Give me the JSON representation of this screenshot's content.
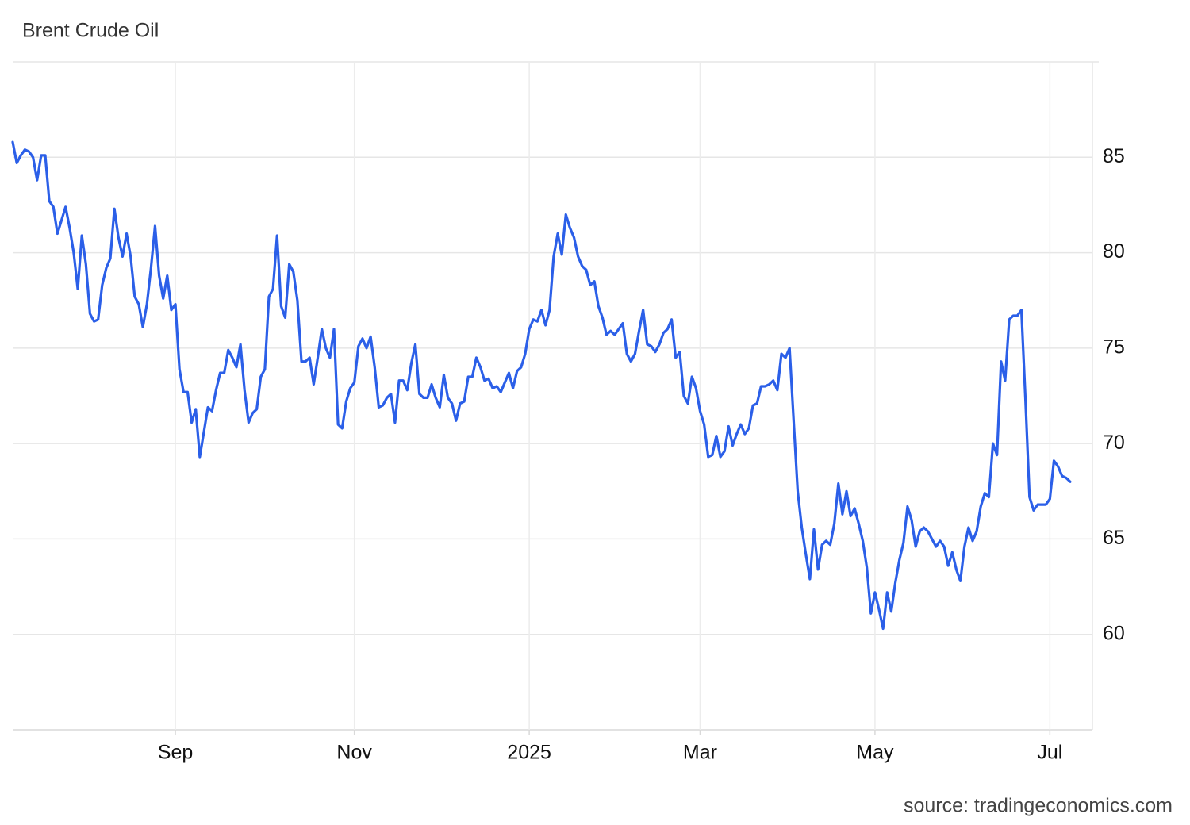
{
  "chart_data": {
    "type": "line",
    "title": "Brent Crude Oil",
    "source": "source: tradingeconomics.com",
    "categories": [
      null,
      null,
      null,
      null,
      null,
      null,
      null,
      null,
      null,
      null,
      null,
      null,
      null,
      null,
      null,
      null,
      null,
      null,
      null,
      null,
      null,
      null,
      null,
      null,
      null,
      null,
      null,
      null,
      null,
      null,
      null,
      null,
      null,
      null,
      null,
      null,
      null,
      null,
      null,
      null,
      "Sep",
      null,
      null,
      null,
      null,
      null,
      null,
      null,
      null,
      null,
      null,
      null,
      null,
      null,
      null,
      null,
      null,
      null,
      null,
      null,
      null,
      null,
      null,
      null,
      null,
      null,
      null,
      null,
      null,
      null,
      null,
      null,
      null,
      null,
      null,
      null,
      null,
      null,
      null,
      null,
      null,
      null,
      null,
      null,
      "Nov",
      null,
      null,
      null,
      null,
      null,
      null,
      null,
      null,
      null,
      null,
      null,
      null,
      null,
      null,
      null,
      null,
      null,
      null,
      null,
      null,
      null,
      null,
      null,
      null,
      null,
      null,
      null,
      null,
      null,
      null,
      null,
      null,
      null,
      null,
      null,
      null,
      null,
      null,
      null,
      null,
      null,
      null,
      "2025",
      null,
      null,
      null,
      null,
      null,
      null,
      null,
      null,
      null,
      null,
      null,
      null,
      null,
      null,
      null,
      null,
      null,
      null,
      null,
      null,
      null,
      null,
      null,
      null,
      null,
      null,
      null,
      null,
      null,
      null,
      null,
      null,
      null,
      null,
      null,
      null,
      null,
      null,
      null,
      null,
      null,
      "Mar",
      null,
      null,
      null,
      null,
      null,
      null,
      null,
      null,
      null,
      null,
      null,
      null,
      null,
      null,
      null,
      null,
      null,
      null,
      null,
      null,
      null,
      null,
      null,
      null,
      null,
      null,
      null,
      null,
      null,
      null,
      null,
      null,
      null,
      null,
      null,
      null,
      null,
      null,
      null,
      null,
      null,
      null,
      "May",
      null,
      null,
      null,
      null,
      null,
      null,
      null,
      null,
      null,
      null,
      null,
      null,
      null,
      null,
      null,
      null,
      null,
      null,
      null,
      null,
      null,
      null,
      null,
      null,
      null,
      null,
      null,
      null,
      null,
      null,
      null,
      null,
      null,
      null,
      null,
      null,
      null,
      null,
      null,
      null,
      null,
      null,
      "Jul",
      null,
      null,
      null,
      null,
      null
    ],
    "series": [
      {
        "name": "Brent Crude Oil",
        "color": "#2b5fe8",
        "values": [
          85.8,
          84.7,
          85.1,
          85.4,
          85.3,
          85.0,
          83.8,
          85.1,
          85.1,
          82.7,
          82.4,
          81.0,
          81.7,
          82.4,
          81.3,
          80.0,
          78.1,
          80.9,
          79.4,
          76.8,
          76.4,
          76.5,
          78.3,
          79.2,
          79.7,
          82.3,
          80.8,
          79.8,
          81.0,
          79.8,
          77.7,
          77.3,
          76.1,
          77.3,
          79.2,
          81.4,
          78.8,
          77.6,
          78.8,
          77.0,
          77.3,
          73.9,
          72.7,
          72.7,
          71.1,
          71.8,
          69.3,
          70.6,
          71.9,
          71.7,
          72.8,
          73.7,
          73.7,
          74.9,
          74.5,
          74.0,
          75.2,
          72.8,
          71.1,
          71.6,
          71.8,
          73.5,
          73.9,
          77.7,
          78.1,
          80.9,
          77.2,
          76.6,
          79.4,
          79.0,
          77.5,
          74.3,
          74.3,
          74.5,
          73.1,
          74.5,
          76.0,
          75.0,
          74.5,
          76.0,
          71.0,
          70.8,
          72.2,
          72.9,
          73.2,
          75.1,
          75.5,
          75.0,
          75.6,
          74.0,
          71.9,
          72.0,
          72.4,
          72.6,
          71.1,
          73.3,
          73.3,
          72.8,
          74.2,
          75.2,
          72.6,
          72.4,
          72.4,
          73.1,
          72.4,
          71.9,
          73.6,
          72.4,
          72.1,
          71.2,
          72.1,
          72.2,
          73.5,
          73.5,
          74.5,
          74.0,
          73.3,
          73.4,
          72.9,
          73.0,
          72.7,
          73.2,
          73.7,
          72.9,
          73.8,
          74.0,
          74.7,
          76.0,
          76.5,
          76.4,
          77.0,
          76.2,
          77.0,
          79.8,
          81.0,
          79.9,
          82.0,
          81.3,
          80.8,
          79.8,
          79.3,
          79.1,
          78.3,
          78.5,
          77.2,
          76.6,
          75.7,
          75.9,
          75.7,
          76.0,
          76.3,
          74.7,
          74.3,
          74.7,
          75.9,
          77.0,
          75.2,
          75.1,
          74.8,
          75.2,
          75.8,
          76.0,
          76.5,
          74.5,
          74.8,
          72.5,
          72.1,
          73.5,
          72.9,
          71.7,
          71.0,
          69.3,
          69.4,
          70.4,
          69.3,
          69.6,
          70.9,
          69.9,
          70.5,
          71.0,
          70.5,
          70.8,
          72.0,
          72.1,
          73.0,
          73.0,
          73.1,
          73.3,
          72.8,
          74.7,
          74.5,
          75.0,
          71.2,
          67.5,
          65.6,
          64.2,
          62.9,
          65.5,
          63.4,
          64.7,
          64.9,
          64.7,
          65.8,
          67.9,
          66.3,
          67.5,
          66.2,
          66.6,
          65.8,
          64.9,
          63.5,
          61.1,
          62.2,
          61.3,
          60.3,
          62.2,
          61.2,
          62.7,
          63.9,
          64.8,
          66.7,
          66.0,
          64.6,
          65.4,
          65.6,
          65.4,
          65.0,
          64.6,
          64.9,
          64.6,
          63.6,
          64.3,
          63.4,
          62.8,
          64.6,
          65.6,
          64.9,
          65.4,
          66.7,
          67.4,
          67.2,
          70.0,
          69.4,
          74.3,
          73.3,
          76.5,
          76.7,
          76.7,
          77.0,
          72.3,
          67.2,
          66.5,
          66.8,
          66.8,
          66.8,
          67.1,
          69.1,
          68.8,
          68.3,
          68.2,
          68.0
        ]
      }
    ],
    "ylim": [
      55,
      90
    ],
    "yticks": [
      60,
      65,
      70,
      75,
      80,
      85
    ],
    "grid": true
  }
}
